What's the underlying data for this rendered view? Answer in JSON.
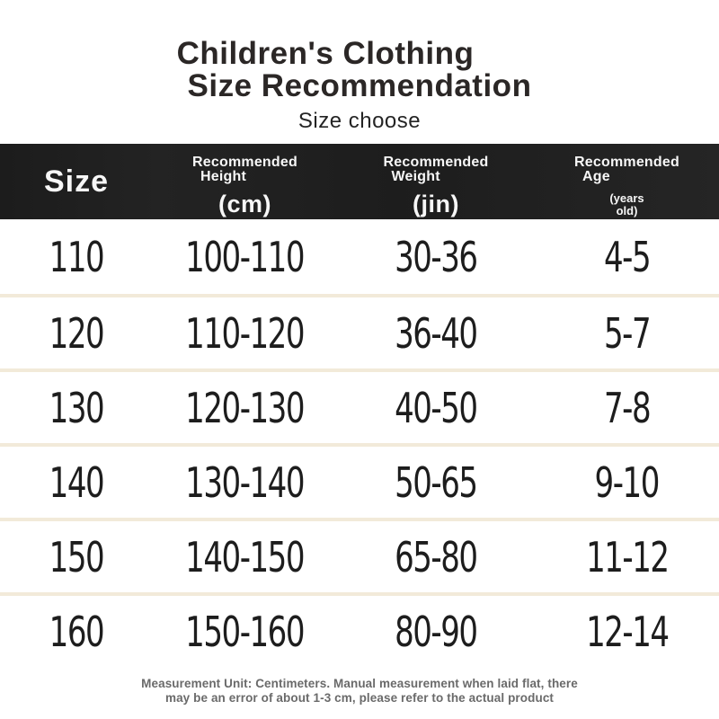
{
  "page": {
    "title_line1": "Children's Clothing",
    "title_line2": "Size Recommendation",
    "subtitle": "Size choose"
  },
  "table": {
    "header": {
      "size_label": "Size",
      "height": {
        "line1": "Recommended",
        "line2": "Height",
        "unit": "(cm)"
      },
      "weight": {
        "line1": "Recommended",
        "line2": "Weight",
        "unit": "(jin)"
      },
      "age": {
        "line1": "Recommended",
        "line2": "Age",
        "unit_line1": "(years",
        "unit_line2": "old)"
      }
    },
    "rows": [
      {
        "size": "110",
        "height": "100-110",
        "weight": "30-36",
        "age": "4-5"
      },
      {
        "size": "120",
        "height": "110-120",
        "weight": "36-40",
        "age": "5-7"
      },
      {
        "size": "130",
        "height": "120-130",
        "weight": "40-50",
        "age": "7-8"
      },
      {
        "size": "140",
        "height": "130-140",
        "weight": "50-65",
        "age": "9-10"
      },
      {
        "size": "150",
        "height": "140-150",
        "weight": "65-80",
        "age": "11-12"
      },
      {
        "size": "160",
        "height": "150-160",
        "weight": "80-90",
        "age": "12-14"
      }
    ]
  },
  "footer": {
    "line1": "Measurement Unit: Centimeters. Manual measurement when laid flat, there",
    "line2": "may be an error of about 1-3 cm, please refer to the actual product"
  },
  "colors": {
    "header_bg": "#1e1e1e",
    "header_text": "#f7f7f7",
    "body_text": "#1d1d1d",
    "separator": "#f2ead9",
    "footer_text": "#6a6a6a",
    "background": "#ffffff"
  }
}
